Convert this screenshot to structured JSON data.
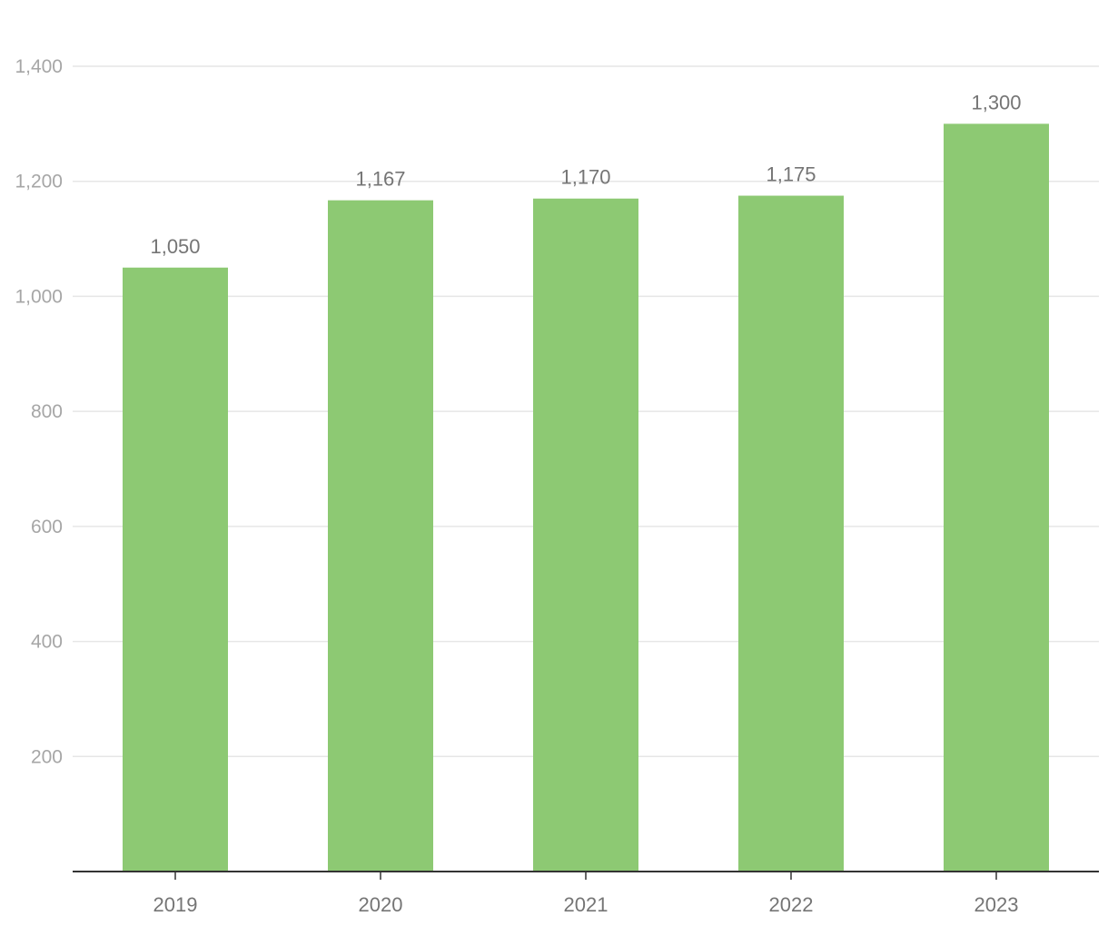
{
  "chart_data": {
    "type": "bar",
    "categories": [
      "2019",
      "2020",
      "2021",
      "2022",
      "2023"
    ],
    "values": [
      1050,
      1167,
      1170,
      1175,
      1300
    ],
    "value_labels": [
      "1,050",
      "1,167",
      "1,170",
      "1,175",
      "1,300"
    ],
    "title": "",
    "xlabel": "",
    "ylabel": "",
    "ylim": [
      0,
      1400
    ],
    "y_ticks": [
      200,
      400,
      600,
      800,
      1000,
      1200,
      1400
    ],
    "y_tick_labels": [
      "200",
      "400",
      "600",
      "800",
      "1,000",
      "1,200",
      "1,400"
    ],
    "grid": true,
    "legend": "none",
    "bar_color": "#8dc973"
  }
}
